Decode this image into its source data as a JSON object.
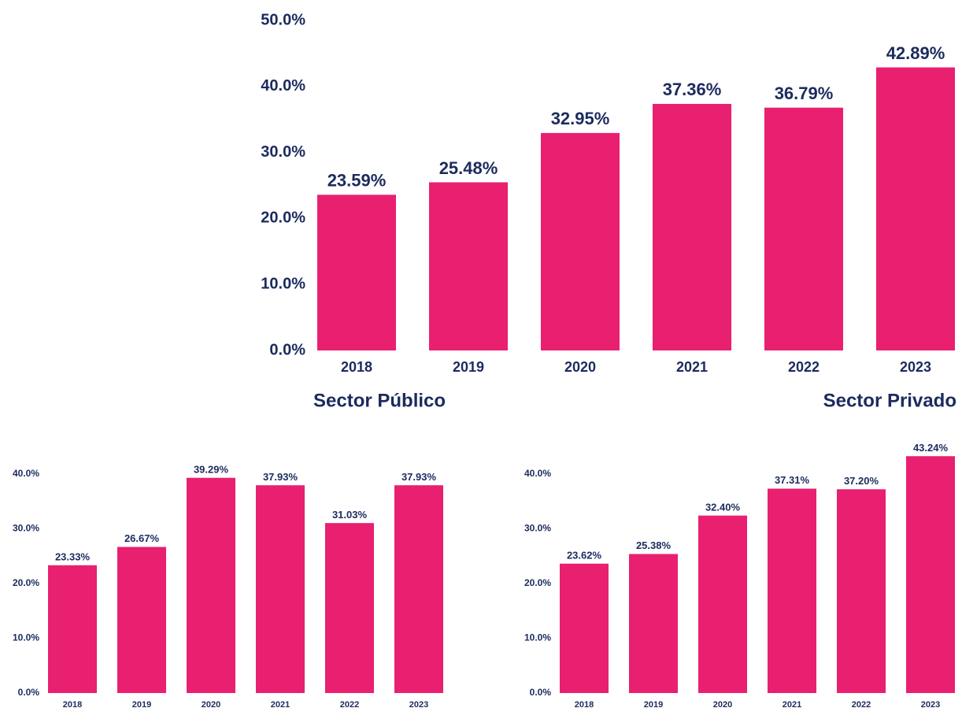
{
  "chart_data": [
    {
      "type": "bar",
      "categories": [
        "2018",
        "2019",
        "2020",
        "2021",
        "2022",
        "2023"
      ],
      "values": [
        23.59,
        25.48,
        32.95,
        37.36,
        36.79,
        42.89
      ],
      "value_labels": [
        "23.59%",
        "25.48%",
        "32.95%",
        "37.36%",
        "36.79%",
        "42.89%"
      ],
      "color": "#e8206f",
      "ylim": [
        0,
        50
      ],
      "yticks": [
        {
          "value": 0,
          "label": "0.0%"
        },
        {
          "value": 10,
          "label": "10.0%"
        },
        {
          "value": 20,
          "label": "20.0%"
        },
        {
          "value": 30,
          "label": "30.0%"
        },
        {
          "value": 40,
          "label": "40.0%"
        },
        {
          "value": 50,
          "label": "50.0%"
        }
      ]
    },
    {
      "type": "bar",
      "title": "Sector Público",
      "categories": [
        "2018",
        "2019",
        "2020",
        "2021",
        "2022",
        "2023"
      ],
      "values": [
        23.33,
        26.67,
        39.29,
        37.93,
        31.03,
        37.93
      ],
      "value_labels": [
        "23.33%",
        "26.67%",
        "39.29%",
        "37.93%",
        "31.03%",
        "37.93%"
      ],
      "color": "#e8206f",
      "ylim": [
        0,
        45
      ],
      "yticks": [
        {
          "value": 0,
          "label": "0.0%"
        },
        {
          "value": 10,
          "label": "10.0%"
        },
        {
          "value": 20,
          "label": "20.0%"
        },
        {
          "value": 30,
          "label": "30.0%"
        },
        {
          "value": 40,
          "label": "40.0%"
        }
      ]
    },
    {
      "type": "bar",
      "title": "Sector Privado",
      "categories": [
        "2018",
        "2019",
        "2020",
        "2021",
        "2022",
        "2023"
      ],
      "values": [
        23.62,
        25.38,
        32.4,
        37.31,
        37.2,
        43.24
      ],
      "value_labels": [
        "23.62%",
        "25.38%",
        "32.40%",
        "37.31%",
        "37.20%",
        "43.24%"
      ],
      "color": "#e8206f",
      "ylim": [
        0,
        45
      ],
      "yticks": [
        {
          "value": 0,
          "label": "0.0%"
        },
        {
          "value": 10,
          "label": "10.0%"
        },
        {
          "value": 20,
          "label": "20.0%"
        },
        {
          "value": 30,
          "label": "30.0%"
        },
        {
          "value": 40,
          "label": "40.0%"
        }
      ]
    }
  ]
}
